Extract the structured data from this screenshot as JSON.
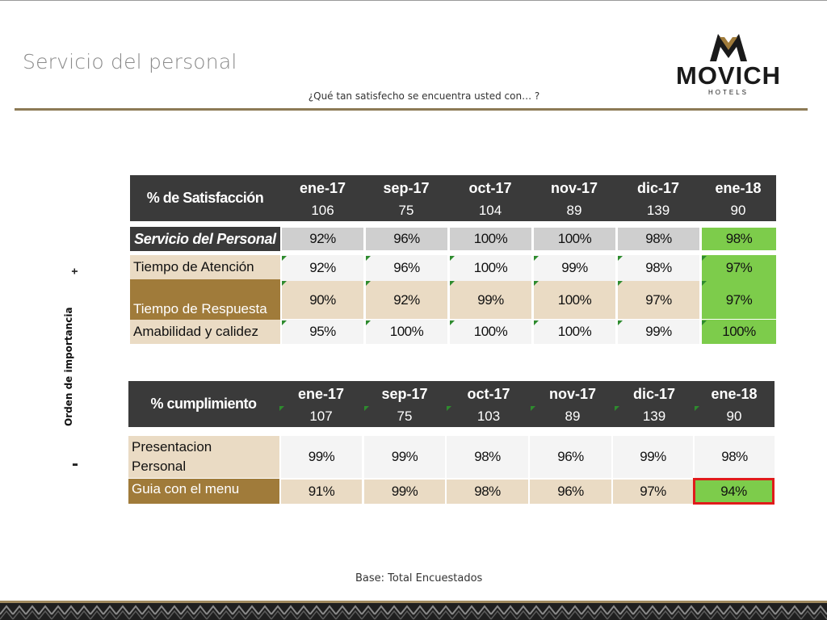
{
  "header": {
    "title": "Servicio del personal",
    "subtitle": "¿Qué tan satisfecho se encuentra usted con… ?",
    "logo_brand": "MOVICH",
    "logo_sub": "HOTELS"
  },
  "side": {
    "axis_label": "Orden de importancia",
    "plus": "+",
    "minus": "-"
  },
  "table1": {
    "header_label": "% de Satisfacción",
    "columns": [
      {
        "month": "ene-17",
        "n": "106"
      },
      {
        "month": "sep-17",
        "n": "75"
      },
      {
        "month": "oct-17",
        "n": "104"
      },
      {
        "month": "nov-17",
        "n": "89"
      },
      {
        "month": "dic-17",
        "n": "139"
      },
      {
        "month": "ene-18",
        "n": "90"
      }
    ],
    "rows": [
      {
        "label": "Servicio del Personal",
        "values": [
          "92%",
          "96%",
          "100%",
          "100%",
          "98%",
          "98%"
        ]
      },
      {
        "label": "Tiempo de Atención",
        "values": [
          "92%",
          "96%",
          "100%",
          "99%",
          "98%",
          "97%"
        ]
      },
      {
        "label": "Tiempo de Respuesta",
        "values": [
          "90%",
          "92%",
          "99%",
          "100%",
          "97%",
          "97%"
        ]
      },
      {
        "label": "Amabilidad y calidez",
        "values": [
          "95%",
          "100%",
          "100%",
          "100%",
          "99%",
          "100%"
        ]
      }
    ]
  },
  "table2": {
    "header_label": "% cumplimiento",
    "columns": [
      {
        "month": "ene-17",
        "n": "107"
      },
      {
        "month": "sep-17",
        "n": "75"
      },
      {
        "month": "oct-17",
        "n": "103"
      },
      {
        "month": "nov-17",
        "n": "89"
      },
      {
        "month": "dic-17",
        "n": "139"
      },
      {
        "month": "ene-18",
        "n": "90"
      }
    ],
    "rows": [
      {
        "label_line1": "Presentacion",
        "label_line2": "Personal",
        "values": [
          "99%",
          "99%",
          "98%",
          "96%",
          "99%",
          "98%"
        ]
      },
      {
        "label": "Guia con el menu",
        "values": [
          "91%",
          "99%",
          "98%",
          "96%",
          "97%",
          "94%"
        ]
      }
    ]
  },
  "footer": {
    "base_note": "Base: Total Encuestados"
  },
  "colors": {
    "header_bg": "#3a3a3a",
    "highlight_green": "#7dcc4b",
    "tan": "#eadbc4",
    "brown": "#a07b3a",
    "alert_red": "#e01b1b",
    "rule_gold": "#8c7a55"
  }
}
